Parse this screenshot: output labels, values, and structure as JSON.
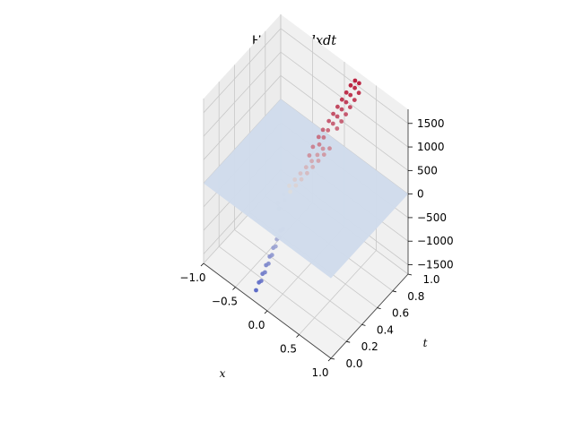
{
  "chart_data": {
    "type": "scatter3d",
    "title_prefix": "Hessian ",
    "title_math": "dxdt",
    "xlabel": "x",
    "ylabel": "t",
    "zlabel": "",
    "xlim": [
      -1.0,
      1.0
    ],
    "ylim": [
      0.0,
      1.0
    ],
    "zlim": [
      -1700,
      1800
    ],
    "x_ticks": [
      {
        "value": -1.0,
        "label": "−1.0"
      },
      {
        "value": -0.5,
        "label": "−0.5"
      },
      {
        "value": 0.0,
        "label": "0.0"
      },
      {
        "value": 0.5,
        "label": "0.5"
      },
      {
        "value": 1.0,
        "label": "1.0"
      }
    ],
    "y_ticks": [
      {
        "value": 0.0,
        "label": "0.0"
      },
      {
        "value": 0.2,
        "label": "0.2"
      },
      {
        "value": 0.4,
        "label": "0.4"
      },
      {
        "value": 0.6,
        "label": "0.6"
      },
      {
        "value": 0.8,
        "label": "0.8"
      },
      {
        "value": 1.0,
        "label": "1.0"
      }
    ],
    "z_ticks": [
      {
        "value": 1500,
        "label": "1500"
      },
      {
        "value": 1000,
        "label": "1000"
      },
      {
        "value": 500,
        "label": "500"
      },
      {
        "value": 0,
        "label": "0"
      },
      {
        "value": -500,
        "label": "−500"
      },
      {
        "value": -1000,
        "label": "−1000"
      },
      {
        "value": -1500,
        "label": "−1500"
      }
    ],
    "plane_value": 0,
    "grid": true,
    "colormap": "coolwarm",
    "colors": {
      "plane": "#cfdbeb",
      "pane": "#f2f2f2",
      "grid": "#c8c8c8",
      "cmap_low": "#3b4cc0",
      "cmap_mid": "#dddddd",
      "cmap_high": "#b40426"
    },
    "series": [
      {
        "values": [
          {
            "x": -0.2,
            "t": 0.02,
            "z": -1500
          },
          {
            "x": -0.18,
            "t": 0.04,
            "z": -1350
          },
          {
            "x": -0.16,
            "t": 0.07,
            "z": -1200
          },
          {
            "x": -0.14,
            "t": 0.1,
            "z": -1050
          },
          {
            "x": -0.12,
            "t": 0.13,
            "z": -900
          },
          {
            "x": -0.1,
            "t": 0.16,
            "z": -750
          },
          {
            "x": -0.08,
            "t": 0.19,
            "z": -600
          },
          {
            "x": -0.06,
            "t": 0.22,
            "z": -450
          },
          {
            "x": -0.13,
            "t": 0.03,
            "z": -1250
          },
          {
            "x": -0.11,
            "t": 0.06,
            "z": -1100
          },
          {
            "x": -0.09,
            "t": 0.09,
            "z": -950
          },
          {
            "x": -0.07,
            "t": 0.12,
            "z": -800
          },
          {
            "x": -0.05,
            "t": 0.15,
            "z": -650
          },
          {
            "x": -0.03,
            "t": 0.18,
            "z": -500
          },
          {
            "x": -0.01,
            "t": 0.21,
            "z": -350
          },
          {
            "x": -0.18,
            "t": 0.3,
            "z": -250
          },
          {
            "x": -0.14,
            "t": 0.34,
            "z": -100
          },
          {
            "x": -0.1,
            "t": 0.38,
            "z": 50
          },
          {
            "x": -0.06,
            "t": 0.42,
            "z": 150
          },
          {
            "x": -0.02,
            "t": 0.46,
            "z": 250
          },
          {
            "x": 0.02,
            "t": 0.5,
            "z": 350
          },
          {
            "x": 0.06,
            "t": 0.54,
            "z": 450
          },
          {
            "x": 0.1,
            "t": 0.58,
            "z": 550
          },
          {
            "x": 0.14,
            "t": 0.62,
            "z": 650
          },
          {
            "x": 0.18,
            "t": 0.66,
            "z": 750
          },
          {
            "x": -0.22,
            "t": 0.32,
            "z": -200
          },
          {
            "x": -0.18,
            "t": 0.36,
            "z": -50
          },
          {
            "x": -0.14,
            "t": 0.4,
            "z": 100
          },
          {
            "x": -0.1,
            "t": 0.44,
            "z": 200
          },
          {
            "x": -0.06,
            "t": 0.48,
            "z": 300
          },
          {
            "x": -0.02,
            "t": 0.52,
            "z": 400
          },
          {
            "x": 0.02,
            "t": 0.56,
            "z": 500
          },
          {
            "x": 0.06,
            "t": 0.6,
            "z": 600
          },
          {
            "x": 0.1,
            "t": 0.64,
            "z": 700
          },
          {
            "x": 0.05,
            "t": 0.55,
            "z": 850
          },
          {
            "x": 0.08,
            "t": 0.6,
            "z": 1000
          },
          {
            "x": 0.1,
            "t": 0.64,
            "z": 1100
          },
          {
            "x": 0.03,
            "t": 0.52,
            "z": 700
          },
          {
            "x": 0.12,
            "t": 0.7,
            "z": 1200
          },
          {
            "x": 0.14,
            "t": 0.74,
            "z": 1300
          },
          {
            "x": 0.16,
            "t": 0.78,
            "z": 1400
          },
          {
            "x": 0.18,
            "t": 0.82,
            "z": 1500
          },
          {
            "x": 0.2,
            "t": 0.86,
            "z": 1600
          },
          {
            "x": 0.22,
            "t": 0.9,
            "z": 1700
          },
          {
            "x": 0.24,
            "t": 0.94,
            "z": 1750
          },
          {
            "x": 0.16,
            "t": 0.72,
            "z": 1150
          },
          {
            "x": 0.18,
            "t": 0.76,
            "z": 1250
          },
          {
            "x": 0.2,
            "t": 0.8,
            "z": 1350
          },
          {
            "x": 0.22,
            "t": 0.84,
            "z": 1450
          },
          {
            "x": 0.24,
            "t": 0.88,
            "z": 1550
          },
          {
            "x": 0.26,
            "t": 0.92,
            "z": 1650
          },
          {
            "x": 0.28,
            "t": 0.96,
            "z": 1700
          },
          {
            "x": 0.2,
            "t": 0.74,
            "z": 1050
          },
          {
            "x": 0.22,
            "t": 0.78,
            "z": 1150
          },
          {
            "x": 0.24,
            "t": 0.82,
            "z": 1250
          },
          {
            "x": 0.26,
            "t": 0.86,
            "z": 1350
          },
          {
            "x": 0.28,
            "t": 0.9,
            "z": 1450
          },
          {
            "x": 0.3,
            "t": 0.94,
            "z": 1550
          },
          {
            "x": 0.09,
            "t": 0.6,
            "z": 850
          },
          {
            "x": 0.11,
            "t": 0.64,
            "z": 950
          },
          {
            "x": 0.13,
            "t": 0.68,
            "z": 1050
          }
        ]
      }
    ]
  }
}
